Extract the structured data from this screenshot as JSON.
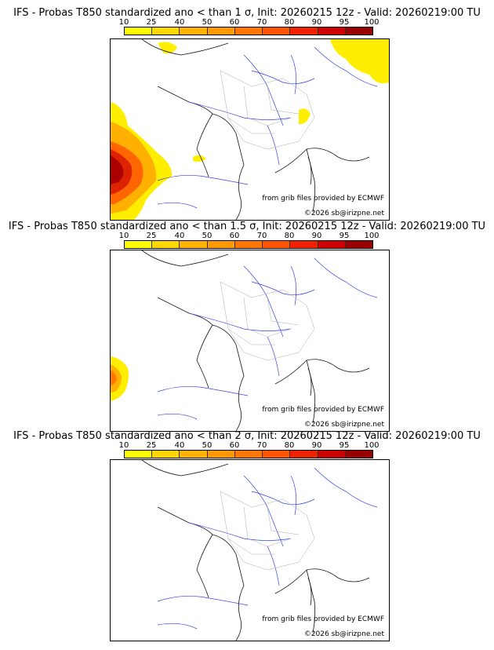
{
  "legend": {
    "ticks": [
      "10",
      "25",
      "40",
      "50",
      "60",
      "70",
      "80",
      "90",
      "95",
      "100"
    ],
    "colors": [
      "#ffff00",
      "#ffd700",
      "#ffb300",
      "#ff9900",
      "#ff7700",
      "#ff5500",
      "#ee2200",
      "#cc0000",
      "#990000",
      "#660000"
    ]
  },
  "panels": [
    {
      "title": "IFS - Probas T850  standardized ano < than 1 σ, Init: 20260215 12z - Valid: 20260219:00 TU",
      "credit_source": "from grib files provided by ECMWF",
      "credit_copyright": "©2026 sb@irizpne.net"
    },
    {
      "title": "IFS - Probas T850  standardized ano < than 1.5 σ, Init: 20260215 12z - Valid: 20260219:00 TU",
      "credit_source": "from grib files provided by ECMWF",
      "credit_copyright": "©2026 sb@irizpne.net"
    },
    {
      "title": "IFS - Probas T850  standardized ano < than 2 σ, Init: 20260215 12z - Valid: 20260219:00 TU",
      "credit_source": "from grib files provided by ECMWF",
      "credit_copyright": "©2026 sb@irizpne.net"
    }
  ]
}
